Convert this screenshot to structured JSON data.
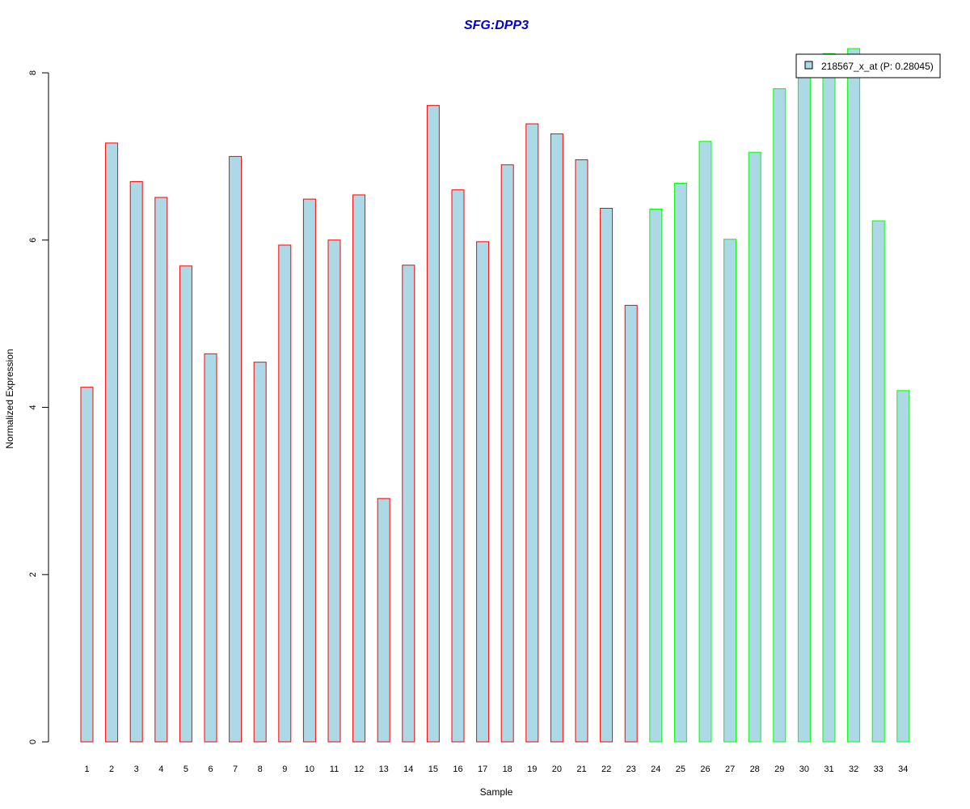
{
  "chart_data": {
    "type": "bar",
    "title": "SFG:DPP3",
    "xlabel": "Sample",
    "ylabel": "Normalized Expression",
    "categories": [
      "1",
      "2",
      "3",
      "4",
      "5",
      "6",
      "7",
      "8",
      "9",
      "10",
      "11",
      "12",
      "13",
      "14",
      "15",
      "16",
      "17",
      "18",
      "19",
      "20",
      "21",
      "22",
      "23",
      "24",
      "25",
      "26",
      "27",
      "28",
      "29",
      "30",
      "31",
      "32",
      "33",
      "34"
    ],
    "values": [
      4.24,
      7.16,
      6.7,
      6.51,
      5.69,
      4.64,
      7.0,
      4.54,
      5.94,
      6.49,
      6.0,
      6.54,
      2.91,
      5.7,
      7.61,
      6.6,
      5.98,
      6.9,
      7.39,
      7.27,
      6.96,
      6.38,
      5.22,
      6.37,
      6.68,
      7.18,
      6.01,
      7.05,
      7.81,
      8.03,
      8.23,
      8.29,
      6.23,
      4.2
    ],
    "edge_colors": [
      "red",
      "red",
      "red",
      "red",
      "red",
      "red",
      "red",
      "red",
      "red",
      "red",
      "red",
      "red",
      "red",
      "red",
      "red",
      "red",
      "red",
      "red",
      "red",
      "red",
      "red",
      "red",
      "red",
      "green",
      "green",
      "green",
      "green",
      "green",
      "green",
      "green",
      "green",
      "green",
      "green",
      "green"
    ],
    "ylim": [
      0,
      8.29
    ],
    "yticks": [
      "0",
      "2",
      "4",
      "6",
      "8"
    ],
    "grid": false,
    "legend": {
      "position": "top-right",
      "entries": [
        "218567_x_at (P: 0.28045)"
      ]
    },
    "colors": {
      "bar_fill": "#add8e6",
      "edge_red": "#ff0000",
      "edge_green": "#00ff00",
      "title": "#0000cd"
    }
  }
}
